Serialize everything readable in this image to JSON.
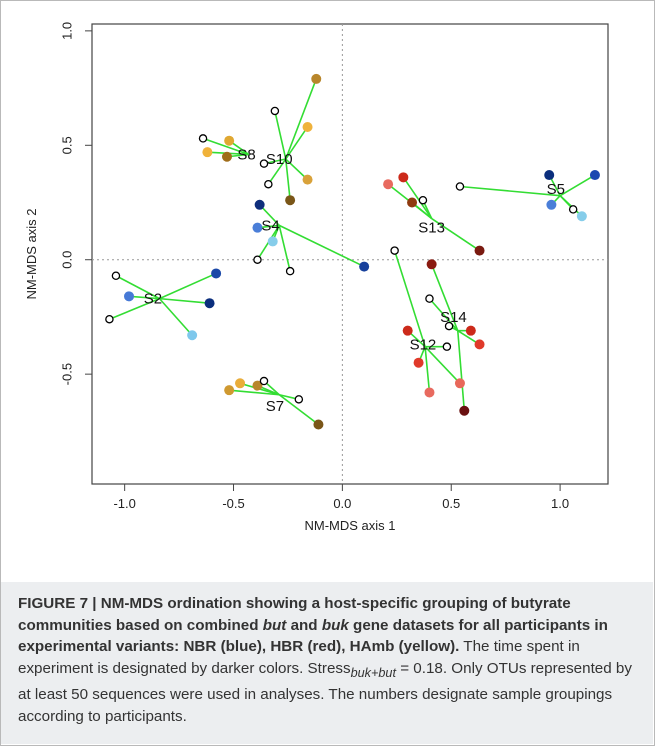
{
  "chart_data": {
    "type": "scatter",
    "xlabel": "NM-MDS axis 1",
    "ylabel": "NM-MDS axis 2",
    "xlim": [
      -1.15,
      1.22
    ],
    "ylim": [
      -0.98,
      1.03
    ],
    "x_ticks": [
      -1.0,
      -0.5,
      0.0,
      0.5,
      1.0
    ],
    "y_ticks": [
      -0.5,
      0.0,
      0.5,
      1.0
    ],
    "x_tick_labels": [
      "-1.0",
      "-0.5",
      "0.0",
      "0.5",
      "1.0"
    ],
    "y_tick_labels": [
      "-0.5",
      "0.0",
      "0.5",
      "1.0"
    ],
    "grid": false,
    "reference_lines": [
      0,
      0
    ],
    "colors": {
      "line": "#33dd33",
      "centroid": "#000000",
      "axis": "#444444",
      "zero": "#999999"
    },
    "groups": [
      {
        "label": "S2",
        "centroid": [
          -0.84,
          -0.17
        ],
        "label_pos": [
          -0.87,
          -0.17
        ],
        "points": [
          {
            "x": -0.58,
            "y": -0.06,
            "color": "#1a48a8"
          },
          {
            "x": -0.61,
            "y": -0.19,
            "color": "#0b2e7d"
          },
          {
            "x": -0.98,
            "y": -0.16,
            "color": "#4679d6"
          },
          {
            "x": -0.69,
            "y": -0.33,
            "color": "#7ec8ec"
          }
        ],
        "hollow": [
          {
            "x": -1.04,
            "y": -0.07
          },
          {
            "x": -1.07,
            "y": -0.26
          }
        ]
      },
      {
        "label": "S8",
        "centroid": [
          -0.43,
          0.46
        ],
        "label_pos": [
          -0.44,
          0.46
        ],
        "points": [
          {
            "x": -0.52,
            "y": 0.52,
            "color": "#e0a832"
          },
          {
            "x": -0.62,
            "y": 0.47,
            "color": "#f0b23a"
          },
          {
            "x": -0.53,
            "y": 0.45,
            "color": "#a06d1a"
          }
        ],
        "hollow": [
          {
            "x": -0.64,
            "y": 0.53
          }
        ]
      },
      {
        "label": "S10",
        "centroid": [
          -0.26,
          0.44
        ],
        "label_pos": [
          -0.29,
          0.44
        ],
        "points": [
          {
            "x": -0.12,
            "y": 0.79,
            "color": "#b8862b"
          },
          {
            "x": -0.16,
            "y": 0.58,
            "color": "#efb23c"
          },
          {
            "x": -0.16,
            "y": 0.35,
            "color": "#d9a23a"
          },
          {
            "x": -0.24,
            "y": 0.26,
            "color": "#7a5618"
          }
        ],
        "hollow": [
          {
            "x": -0.31,
            "y": 0.65
          },
          {
            "x": -0.36,
            "y": 0.42
          },
          {
            "x": -0.34,
            "y": 0.33
          }
        ]
      },
      {
        "label": "S4",
        "centroid": [
          -0.29,
          0.15
        ],
        "label_pos": [
          -0.33,
          0.15
        ],
        "points": [
          {
            "x": -0.38,
            "y": 0.24,
            "color": "#0e2e7c"
          },
          {
            "x": -0.39,
            "y": 0.14,
            "color": "#4a7ed8"
          },
          {
            "x": -0.32,
            "y": 0.08,
            "color": "#86cdea"
          },
          {
            "x": 0.1,
            "y": -0.03,
            "color": "#17409c"
          }
        ],
        "hollow": [
          {
            "x": -0.39,
            "y": 0.0
          },
          {
            "x": -0.24,
            "y": -0.05
          }
        ]
      },
      {
        "label": "S7",
        "centroid": [
          -0.29,
          -0.59
        ],
        "label_pos": [
          -0.31,
          -0.64
        ],
        "points": [
          {
            "x": -0.47,
            "y": -0.54,
            "color": "#e9ad3a"
          },
          {
            "x": -0.52,
            "y": -0.57,
            "color": "#cf9930"
          },
          {
            "x": -0.39,
            "y": -0.55,
            "color": "#b8862b"
          },
          {
            "x": -0.11,
            "y": -0.72,
            "color": "#7a5618"
          }
        ],
        "hollow": [
          {
            "x": -0.36,
            "y": -0.53
          },
          {
            "x": -0.2,
            "y": -0.61
          }
        ]
      },
      {
        "label": "S13",
        "centroid": [
          0.41,
          0.18
        ],
        "label_pos": [
          0.41,
          0.14
        ],
        "points": [
          {
            "x": 0.21,
            "y": 0.33,
            "color": "#e86a5f"
          },
          {
            "x": 0.28,
            "y": 0.36,
            "color": "#cc2a1a"
          },
          {
            "x": 0.32,
            "y": 0.25,
            "color": "#8f3a10"
          },
          {
            "x": 0.63,
            "y": 0.04,
            "color": "#7a1a10"
          }
        ],
        "hollow": [
          {
            "x": 0.37,
            "y": 0.26
          }
        ]
      },
      {
        "label": "S5",
        "centroid": [
          1.0,
          0.28
        ],
        "label_pos": [
          0.98,
          0.31
        ],
        "points": [
          {
            "x": 0.95,
            "y": 0.37,
            "color": "#0b2e7d"
          },
          {
            "x": 1.16,
            "y": 0.37,
            "color": "#1a48b0"
          },
          {
            "x": 0.96,
            "y": 0.24,
            "color": "#4a7ed8"
          },
          {
            "x": 1.1,
            "y": 0.19,
            "color": "#86cdea"
          }
        ],
        "hollow": [
          {
            "x": 0.54,
            "y": 0.32
          },
          {
            "x": 1.06,
            "y": 0.22
          }
        ]
      },
      {
        "label": "S14",
        "centroid": [
          0.53,
          -0.31
        ],
        "label_pos": [
          0.51,
          -0.25
        ],
        "points": [
          {
            "x": 0.41,
            "y": -0.02,
            "color": "#8a1a10"
          },
          {
            "x": 0.59,
            "y": -0.31,
            "color": "#cc2a1a"
          },
          {
            "x": 0.63,
            "y": -0.37,
            "color": "#e03a2a"
          },
          {
            "x": 0.56,
            "y": -0.66,
            "color": "#6a1010"
          }
        ],
        "hollow": [
          {
            "x": 0.49,
            "y": -0.29
          },
          {
            "x": 0.4,
            "y": -0.17
          }
        ]
      },
      {
        "label": "S12",
        "centroid": [
          0.38,
          -0.38
        ],
        "label_pos": [
          0.37,
          -0.37
        ],
        "points": [
          {
            "x": 0.3,
            "y": -0.31,
            "color": "#cc2a1a"
          },
          {
            "x": 0.35,
            "y": -0.45,
            "color": "#e03a2a"
          },
          {
            "x": 0.4,
            "y": -0.58,
            "color": "#e86a5f"
          },
          {
            "x": 0.54,
            "y": -0.54,
            "color": "#e8685a"
          }
        ],
        "hollow": [
          {
            "x": 0.24,
            "y": 0.04
          },
          {
            "x": 0.48,
            "y": -0.38
          }
        ]
      }
    ]
  },
  "caption": {
    "fig_label": "FIGURE 7 | NM-MDS ordination showing a host-specific grouping of butyrate communities based on combined ",
    "bold_it1": "but",
    "bold_and": " and ",
    "bold_it2": "buk",
    "bold_rest": " gene datasets for all participants in experimental variants: NBR (blue), HBR (red), HAmb (yellow).",
    "text1": " The time spent in experiment is designated by darker colors. Stress",
    "stress_sub": "buk+but",
    "stress_eq": " = 0.18. Only OTUs represented by at least 50 sequences were used in analyses. The numbers designate sample groupings according to participants."
  }
}
